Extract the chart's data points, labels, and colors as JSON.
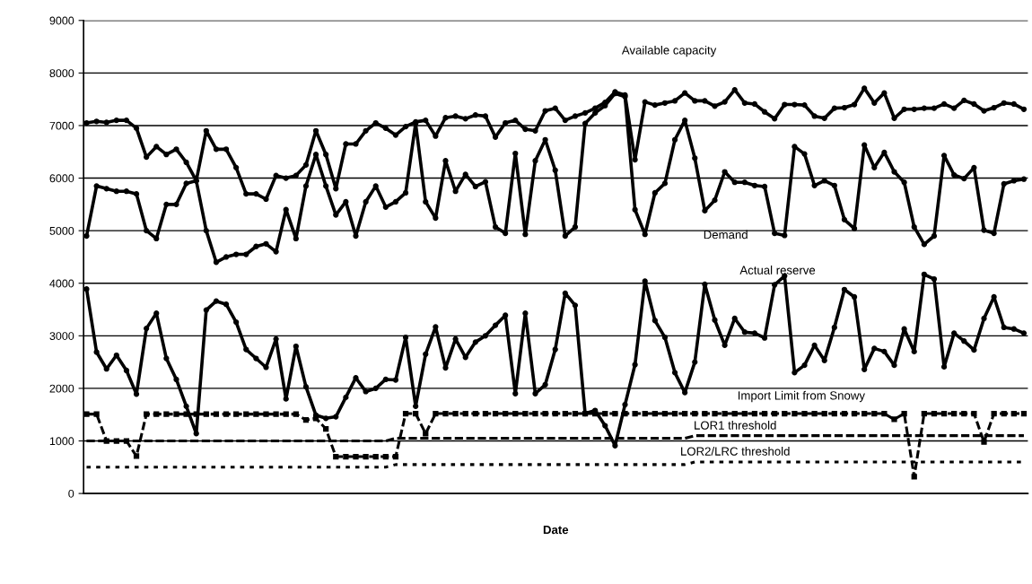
{
  "chart_data": {
    "type": "line",
    "xlabel": "Date",
    "categories": [
      null,
      null,
      null,
      null,
      null,
      null,
      null,
      null,
      null,
      null,
      null,
      null,
      null,
      null,
      null,
      null,
      null,
      null,
      null,
      null,
      null,
      null,
      null,
      null,
      null,
      null,
      null,
      null,
      null,
      null,
      null,
      null,
      null,
      null,
      null,
      null,
      null,
      null,
      null,
      null,
      null,
      null,
      null,
      null,
      null,
      null,
      null,
      null,
      null,
      null,
      null,
      null,
      null,
      null,
      null,
      null,
      null,
      null,
      null,
      null,
      null,
      null,
      null,
      null,
      null,
      null,
      null,
      null,
      null,
      null,
      null,
      null,
      null,
      null,
      null,
      null,
      null,
      null,
      null,
      null,
      null,
      null,
      null,
      null,
      null,
      null,
      null,
      null,
      null,
      null,
      null,
      null,
      null,
      null,
      null
    ],
    "ylim": [
      0,
      9000
    ],
    "yticks": [
      0,
      1000,
      2000,
      3000,
      4000,
      5000,
      6000,
      7000,
      8000,
      9000
    ],
    "grid": "y",
    "series": [
      {
        "name": "Available capacity",
        "color": "#000000",
        "marker": "circle",
        "line_style": "solid",
        "values": [
          7050,
          7080,
          7060,
          7100,
          7100,
          6950,
          6400,
          6600,
          6450,
          6550,
          6300,
          5950,
          6900,
          6550,
          6550,
          6200,
          5700,
          5700,
          5600,
          6050,
          6000,
          6050,
          6250,
          6900,
          6450,
          5800,
          6650,
          6650,
          6900,
          7050,
          6950,
          6820,
          6980,
          7070,
          7100,
          6800,
          7150,
          7180,
          7130,
          7200,
          7180,
          6780,
          7050,
          7100,
          6930,
          6900,
          7280,
          7330,
          7100,
          7180,
          7240,
          7330,
          7440,
          7640,
          7580,
          6350,
          7450,
          7390,
          7430,
          7470,
          7620,
          7470,
          7470,
          7370,
          7450,
          7680,
          7430,
          7410,
          7260,
          7130,
          7400,
          7400,
          7390,
          7180,
          7140,
          7330,
          7340,
          7400,
          7710,
          7430,
          7620,
          7140,
          7310,
          7310,
          7330,
          7330,
          7410,
          7330,
          7480,
          7410,
          7280,
          7340,
          7430,
          7410,
          7310
        ]
      },
      {
        "name": "Demand",
        "color": "#000000",
        "marker": "circle",
        "line_style": "solid",
        "values": [
          4900,
          5850,
          5800,
          5750,
          5750,
          5700,
          5000,
          4850,
          5500,
          5500,
          5900,
          5950,
          5000,
          4400,
          4500,
          4550,
          4550,
          4700,
          4750,
          4600,
          5400,
          4850,
          5850,
          6450,
          5850,
          5300,
          5550,
          4900,
          5550,
          5850,
          5450,
          5550,
          5720,
          7040,
          5550,
          5240,
          6330,
          5750,
          6070,
          5840,
          5930,
          5070,
          4950,
          6470,
          4930,
          6330,
          6730,
          6150,
          4900,
          5070,
          7040,
          7240,
          7380,
          7610,
          7550,
          5400,
          4930,
          5720,
          5900,
          6730,
          7100,
          6380,
          5380,
          5580,
          6120,
          5920,
          5920,
          5860,
          5840,
          4950,
          4910,
          6600,
          6460,
          5860,
          5950,
          5860,
          5210,
          5040,
          6630,
          6200,
          6490,
          6120,
          5920,
          5070,
          4740,
          4900,
          6430,
          6060,
          5990,
          6200,
          5010,
          4950,
          5890,
          5950,
          5980
        ]
      },
      {
        "name": "Actual reserve",
        "color": "#000000",
        "marker": "circle",
        "line_style": "solid",
        "values": [
          3890,
          2690,
          2370,
          2630,
          2340,
          1890,
          3140,
          3430,
          2570,
          2170,
          1660,
          1140,
          3490,
          3660,
          3600,
          3260,
          2740,
          2570,
          2400,
          2940,
          1800,
          2800,
          2030,
          1490,
          1430,
          1460,
          1830,
          2200,
          1940,
          2000,
          2170,
          2160,
          2970,
          1660,
          2650,
          3170,
          2390,
          2940,
          2590,
          2880,
          3000,
          3200,
          3390,
          1900,
          3430,
          1900,
          2070,
          2740,
          3810,
          3580,
          1520,
          1580,
          1290,
          910,
          1690,
          2450,
          4040,
          3290,
          2970,
          2300,
          1920,
          2500,
          3980,
          3300,
          2820,
          3330,
          3070,
          3050,
          2960,
          3970,
          4140,
          2300,
          2440,
          2820,
          2530,
          3160,
          3880,
          3740,
          2360,
          2760,
          2700,
          2440,
          3130,
          2700,
          4170,
          4080,
          2410,
          3050,
          2900,
          2730,
          3330,
          3740,
          3160,
          3130,
          3050
        ]
      },
      {
        "name": "Import Limit from Snowy",
        "color": "#000000",
        "marker": "square",
        "line_style": "dashed",
        "values": [
          1510,
          1510,
          1000,
          1000,
          1000,
          710,
          1510,
          1510,
          1510,
          1510,
          1510,
          1510,
          1510,
          1510,
          1510,
          1510,
          1510,
          1510,
          1510,
          1510,
          1510,
          1510,
          1400,
          1430,
          1230,
          700,
          700,
          700,
          700,
          700,
          700,
          700,
          1520,
          1520,
          1140,
          1520,
          1520,
          1520,
          1520,
          1520,
          1520,
          1520,
          1520,
          1520,
          1520,
          1520,
          1520,
          1520,
          1520,
          1520,
          1520,
          1520,
          1520,
          1520,
          1520,
          1520,
          1520,
          1520,
          1520,
          1520,
          1520,
          1520,
          1520,
          1520,
          1520,
          1520,
          1520,
          1520,
          1520,
          1520,
          1520,
          1520,
          1520,
          1520,
          1520,
          1520,
          1520,
          1520,
          1520,
          1520,
          1520,
          1410,
          1520,
          320,
          1520,
          1520,
          1520,
          1520,
          1520,
          1520,
          980,
          1520,
          1520,
          1520,
          1520
        ]
      },
      {
        "name": "LOR1 threshold",
        "color": "#000000",
        "marker": "none",
        "line_style": "dashed",
        "values": [
          1000,
          1000,
          1000,
          1000,
          1000,
          1000,
          1000,
          1000,
          1000,
          1000,
          1000,
          1000,
          1000,
          1000,
          1000,
          1000,
          1000,
          1000,
          1000,
          1000,
          1000,
          1000,
          1000,
          1000,
          1000,
          1000,
          1000,
          1000,
          1000,
          1000,
          1000,
          1050,
          1050,
          1050,
          1050,
          1050,
          1050,
          1050,
          1050,
          1050,
          1050,
          1050,
          1050,
          1050,
          1050,
          1050,
          1050,
          1050,
          1050,
          1050,
          1050,
          1050,
          1050,
          1050,
          1050,
          1050,
          1050,
          1050,
          1050,
          1050,
          1050,
          1100,
          1100,
          1100,
          1100,
          1100,
          1100,
          1100,
          1100,
          1100,
          1100,
          1100,
          1100,
          1100,
          1100,
          1100,
          1100,
          1100,
          1100,
          1100,
          1100,
          1100,
          1100,
          1100,
          1100,
          1100,
          1100,
          1100,
          1100,
          1100,
          1100,
          1100,
          1100,
          1100,
          1100
        ]
      },
      {
        "name": "LOR2/LRC threshold",
        "color": "#000000",
        "marker": "none",
        "line_style": "dotted",
        "values": [
          500,
          500,
          500,
          500,
          500,
          500,
          500,
          500,
          500,
          500,
          500,
          500,
          500,
          500,
          500,
          500,
          500,
          500,
          500,
          500,
          500,
          500,
          500,
          500,
          500,
          500,
          500,
          500,
          500,
          500,
          500,
          550,
          550,
          550,
          550,
          550,
          550,
          550,
          550,
          550,
          550,
          550,
          550,
          550,
          550,
          550,
          550,
          550,
          550,
          550,
          550,
          550,
          550,
          550,
          550,
          550,
          550,
          550,
          550,
          550,
          550,
          600,
          600,
          600,
          600,
          600,
          600,
          600,
          600,
          600,
          600,
          600,
          600,
          600,
          600,
          600,
          600,
          600,
          600,
          600,
          600,
          600,
          600,
          600,
          600,
          600,
          600,
          600,
          600,
          600,
          600,
          600,
          600,
          600,
          600
        ]
      }
    ]
  }
}
